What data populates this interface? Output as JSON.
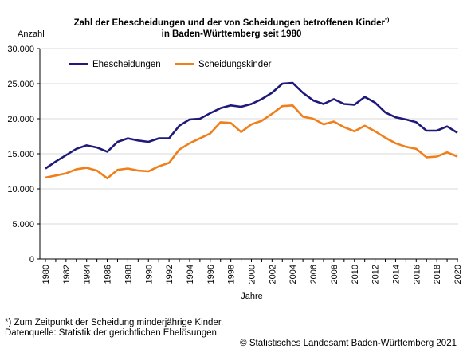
{
  "title_line1": "Zahl der Ehescheidungen und der von Scheidungen betroffenen Kinder",
  "title_sup": "*)",
  "title_line2": "in Baden-Württemberg seit 1980",
  "footnote_line1": "*) Zum Zeitpunkt der Scheidung minderjährige Kinder.",
  "footnote_line2": "Datenquelle: Statistik der gerichtlichen Ehelösungen.",
  "copyright": "© Statistisches Landesamt Baden-Württemberg 2021",
  "colors": {
    "series1": "#1f1a7a",
    "series2": "#f07f1a",
    "grid": "#d9d9d9",
    "axis": "#000000"
  },
  "chart_data": {
    "type": "line",
    "xlabel": "Jahre",
    "ylabel": "Anzahl",
    "ylim": [
      0,
      30000
    ],
    "yticks": [
      0,
      5000,
      10000,
      15000,
      20000,
      25000,
      30000
    ],
    "ytick_labels": [
      "0",
      "5.000",
      "10.000",
      "15.000",
      "20.000",
      "25.000",
      "30.000"
    ],
    "xlim": [
      1980,
      2020
    ],
    "xticks": [
      1980,
      1982,
      1984,
      1986,
      1988,
      1990,
      1992,
      1994,
      1996,
      1998,
      2000,
      2002,
      2004,
      2006,
      2008,
      2010,
      2012,
      2014,
      2016,
      2018,
      2020
    ],
    "xtick_labels": [
      "1980",
      "1982",
      "1984",
      "1986",
      "1988",
      "1990",
      "1992",
      "1994",
      "1996",
      "1998",
      "2000",
      "2002",
      "2004",
      "2006",
      "2008",
      "2010",
      "2012",
      "2014",
      "2016",
      "2018",
      "2020"
    ],
    "grid": true,
    "legend_position": "top-left",
    "x": [
      1980,
      1981,
      1982,
      1983,
      1984,
      1985,
      1986,
      1987,
      1988,
      1989,
      1990,
      1991,
      1992,
      1993,
      1994,
      1995,
      1996,
      1997,
      1998,
      1999,
      2000,
      2001,
      2002,
      2003,
      2004,
      2005,
      2006,
      2007,
      2008,
      2009,
      2010,
      2011,
      2012,
      2013,
      2014,
      2015,
      2016,
      2017,
      2018,
      2019,
      2020
    ],
    "series": [
      {
        "name": "Ehescheidungen",
        "values": [
          12900,
          13900,
          14800,
          15700,
          16200,
          15900,
          15300,
          16700,
          17200,
          16900,
          16700,
          17200,
          17200,
          19000,
          19900,
          20000,
          20800,
          21500,
          21900,
          21700,
          22100,
          22800,
          23700,
          25000,
          25100,
          23700,
          22600,
          22100,
          22800,
          22100,
          22000,
          23100,
          22300,
          20900,
          20200,
          19900,
          19500,
          18300,
          18300,
          18900,
          18000
        ]
      },
      {
        "name": "Scheidungskinder",
        "values": [
          11600,
          11900,
          12200,
          12800,
          13000,
          12600,
          11500,
          12700,
          12900,
          12600,
          12500,
          13200,
          13700,
          15600,
          16500,
          17200,
          17900,
          19500,
          19400,
          18100,
          19200,
          19700,
          20700,
          21800,
          21900,
          20300,
          20000,
          19200,
          19600,
          18800,
          18200,
          19000,
          18200,
          17300,
          16500,
          16000,
          15700,
          14500,
          14600,
          15200,
          14600
        ]
      }
    ]
  }
}
